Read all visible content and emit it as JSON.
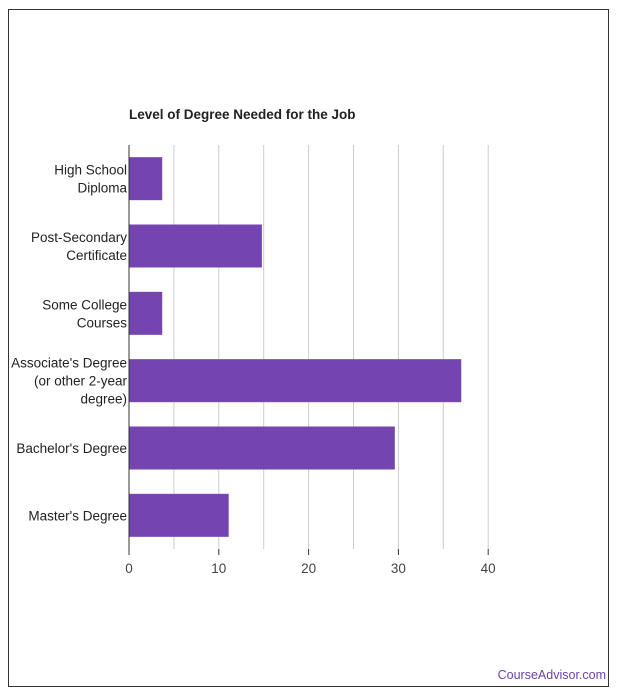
{
  "chart_data": {
    "type": "bar",
    "orientation": "horizontal",
    "title": "Level of Degree Needed for the Job",
    "xlabel": "",
    "ylabel": "",
    "categories": [
      [
        "High School",
        "Diploma"
      ],
      [
        "Post-Secondary",
        "Certificate"
      ],
      [
        "Some College",
        "Courses"
      ],
      [
        "Associate's Degree",
        "(or other 2-year",
        "degree)"
      ],
      [
        "Bachelor's Degree"
      ],
      [
        "Master's Degree"
      ]
    ],
    "values": [
      3.7,
      14.8,
      3.7,
      37.0,
      29.6,
      11.1
    ],
    "xlim": [
      0,
      50
    ],
    "xticks": [
      0,
      10,
      20,
      30,
      40
    ],
    "grid": true,
    "bar_color": "#7445b0"
  },
  "footer": {
    "link_text": "CourseAdvisor.com",
    "link_color": "#6f42a8"
  },
  "colors": {
    "grid": "#cccccc",
    "axis": "#333333",
    "text": "#212121"
  }
}
